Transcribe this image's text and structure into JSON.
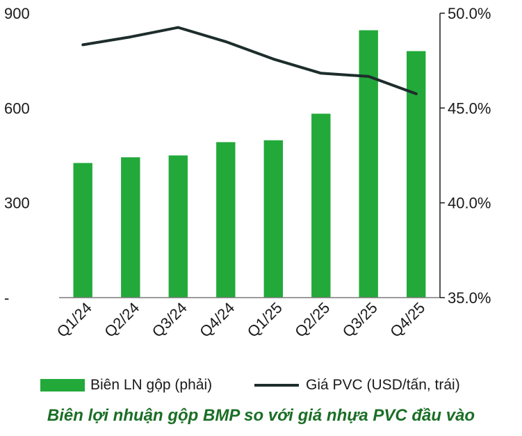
{
  "chart_data": {
    "type": "bar",
    "categories": [
      "Q1/24",
      "Q2/24",
      "Q3/24",
      "Q4/24",
      "Q1/25",
      "Q2/25",
      "Q3/25",
      "Q4/25"
    ],
    "series": [
      {
        "name": "Biên LN gộp (phải)",
        "kind": "bar",
        "axis": "right",
        "color": "#22a93a",
        "values": [
          42.1,
          42.4,
          42.5,
          43.2,
          43.3,
          44.7,
          49.1,
          48.0
        ]
      },
      {
        "name": "Giá PVC (USD/tấn, trái)",
        "kind": "line",
        "axis": "left",
        "color": "#1d2d2c",
        "values": [
          800,
          825,
          855,
          810,
          755,
          710,
          700,
          645
        ]
      }
    ],
    "y_left": {
      "ylim": [
        0,
        900
      ],
      "ticks": [
        0,
        300,
        600,
        900
      ],
      "tick_labels": [
        "-",
        "300",
        "600",
        "900"
      ]
    },
    "y_right": {
      "ylim": [
        35,
        50
      ],
      "ticks": [
        35,
        40,
        45,
        50
      ],
      "tick_labels": [
        "35.0%",
        "40.0%",
        "45.0%",
        "50.0%"
      ]
    },
    "grid": false,
    "legend": "bottom",
    "caption": "Biên lợi nhuận gộp BMP so với giá nhựa PVC đầu vào"
  }
}
